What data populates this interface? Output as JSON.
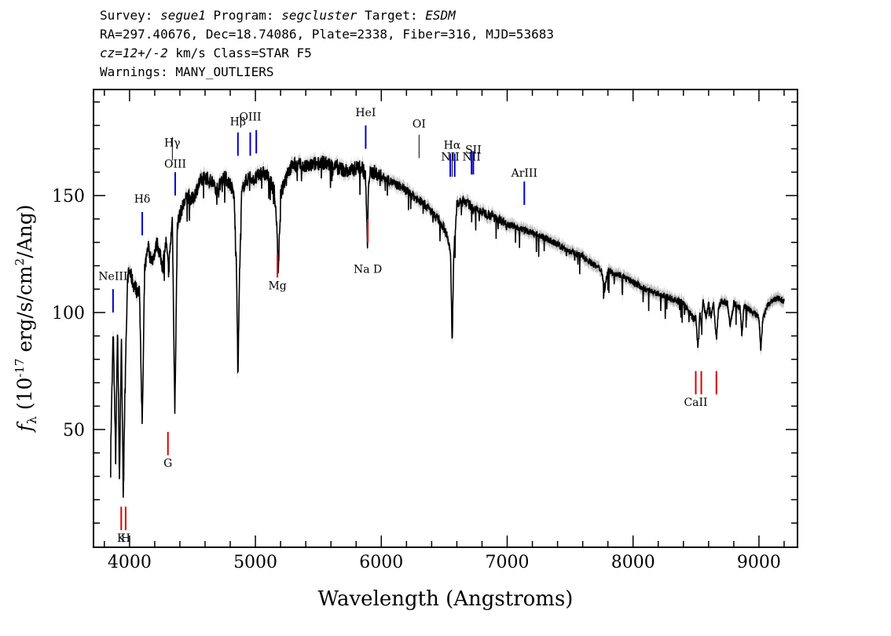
{
  "header": {
    "line1": {
      "survey_label": "Survey: ",
      "survey": "segue1",
      "program_label": " Program: ",
      "program": "segcluster",
      "target_label": " Target: ",
      "target": "ESDM"
    },
    "line2": "RA=297.40676, Dec=18.74086, Plate=2338, Fiber=316, MJD=53683",
    "line3": {
      "cz": "cz=12+/-2",
      "rest": " km/s Class=STAR F5"
    },
    "line4": "Warnings: MANY_OUTLIERS"
  },
  "chart_data": {
    "type": "line",
    "xlabel": "Wavelength (Angstroms)",
    "ylabel_prefix": "f",
    "ylabel_sub": "λ",
    "ylabel_main": " (10",
    "ylabel_exp": "-17",
    "ylabel_units": " erg/s/cm",
    "ylabel_exp2": "2",
    "ylabel_end": "/Ang)",
    "xlim": [
      3720,
      9300
    ],
    "ylim": [
      0,
      195
    ],
    "xticks": [
      4000,
      5000,
      6000,
      7000,
      8000,
      9000
    ],
    "yticks": [
      50,
      100,
      150
    ],
    "colors": {
      "spectrum": "#000000",
      "error": "#bbbbbb",
      "emission": "#0000cc",
      "absorption": "#dd0000",
      "other": "#000000"
    },
    "spectrum": {
      "x": [
        3850,
        3870,
        3890,
        3905,
        3920,
        3935,
        3950,
        3968,
        3985,
        4000,
        4030,
        4060,
        4080,
        4101,
        4120,
        4150,
        4180,
        4220,
        4260,
        4290,
        4310,
        4340,
        4360,
        4380,
        4420,
        4460,
        4500,
        4550,
        4600,
        4650,
        4700,
        4750,
        4800,
        4830,
        4850,
        4861,
        4875,
        4890,
        4910,
        4950,
        5000,
        5050,
        5100,
        5150,
        5167,
        5183,
        5200,
        5250,
        5300,
        5350,
        5400,
        5450,
        5500,
        5550,
        5600,
        5650,
        5700,
        5750,
        5800,
        5850,
        5875,
        5890,
        5900,
        5920,
        5950,
        6000,
        6050,
        6100,
        6150,
        6200,
        6250,
        6300,
        6350,
        6400,
        6450,
        6500,
        6530,
        6550,
        6563,
        6575,
        6600,
        6650,
        6700,
        6750,
        6800,
        6900,
        7000,
        7100,
        7200,
        7300,
        7400,
        7500,
        7600,
        7700,
        7750,
        7773,
        7800,
        7900,
        8000,
        8100,
        8200,
        8300,
        8400,
        8450,
        8480,
        8498,
        8515,
        8530,
        8542,
        8555,
        8580,
        8600,
        8620,
        8640,
        8662,
        8680,
        8700,
        8750,
        8771,
        8800,
        8850,
        8865,
        8880,
        8950,
        9000,
        9015,
        9030,
        9060,
        9100,
        9150,
        9200
      ],
      "y": [
        40,
        92,
        38,
        95,
        26,
        90,
        24,
        80,
        115,
        118,
        112,
        110,
        108,
        50,
        118,
        128,
        122,
        130,
        120,
        130,
        118,
        140,
        57,
        138,
        145,
        150,
        148,
        155,
        158,
        156,
        153,
        158,
        155,
        150,
        120,
        72,
        120,
        150,
        155,
        158,
        157,
        160,
        158,
        152,
        140,
        118,
        150,
        160,
        163,
        163,
        162,
        163,
        164,
        164,
        163,
        162,
        161,
        160,
        162,
        162,
        158,
        128,
        158,
        160,
        160,
        158,
        157,
        155,
        154,
        152,
        150,
        148,
        146,
        143,
        140,
        136,
        132,
        125,
        86,
        125,
        146,
        148,
        146,
        144,
        143,
        141,
        138,
        136,
        134,
        132,
        129,
        126,
        124,
        120,
        118,
        110,
        118,
        116,
        113,
        110,
        108,
        106,
        104,
        100,
        97,
        98,
        85,
        100,
        95,
        105,
        98,
        104,
        98,
        104,
        88,
        102,
        105,
        104,
        94,
        104,
        102,
        90,
        103,
        100,
        98,
        83,
        97,
        102,
        105,
        106,
        105
      ]
    },
    "lines": [
      {
        "label": "NeIII",
        "x": 3869,
        "type": "emission",
        "y0": 100,
        "y1": 110,
        "ly": 114
      },
      {
        "label": "Hδ",
        "x": 4101,
        "type": "emission",
        "y0": 133,
        "y1": 143,
        "ly": 147
      },
      {
        "label": "Hγ",
        "x": 4340,
        "type": "other",
        "y0": 165,
        "y1": 175,
        "ly": 171
      },
      {
        "label": "OIII",
        "x": 4363,
        "type": "emission",
        "y0": 150,
        "y1": 160,
        "ly": 162
      },
      {
        "label": "Hβ",
        "x": 4861,
        "type": "emission",
        "y0": 167,
        "y1": 177,
        "ly": 180
      },
      {
        "label": "OIII",
        "x": 4959,
        "type": "emission",
        "y0": 167,
        "y1": 177,
        "ly": 182
      },
      {
        "label": "",
        "x": 5007,
        "type": "emission",
        "y0": 168,
        "y1": 178,
        "ly": 0
      },
      {
        "label": "HeI",
        "x": 5876,
        "type": "emission",
        "y0": 170,
        "y1": 180,
        "ly": 184
      },
      {
        "label": "OI",
        "x": 6300,
        "type": "other",
        "y0": 166,
        "y1": 176,
        "ly": 179
      },
      {
        "label": "NII",
        "x": 6548,
        "type": "emission",
        "y0": 158,
        "y1": 168,
        "ly": 165
      },
      {
        "label": "Hα",
        "x": 6563,
        "type": "other",
        "y0": 158,
        "y1": 168,
        "ly": 170
      },
      {
        "label": "",
        "x": 6583,
        "type": "emission",
        "y0": 158,
        "y1": 168,
        "ly": 0
      },
      {
        "label": "NII",
        "x": 6717,
        "type": "emission",
        "y0": 159,
        "y1": 169,
        "ly": 165
      },
      {
        "label": "SII",
        "x": 6731,
        "type": "emission",
        "y0": 159,
        "y1": 169,
        "ly": 168
      },
      {
        "label": "ArIII",
        "x": 7136,
        "type": "emission",
        "y0": 146,
        "y1": 156,
        "ly": 158
      },
      {
        "label": "K",
        "x": 3934,
        "type": "absorption",
        "y0": 7,
        "y1": 17,
        "ly": 2
      },
      {
        "label": "H",
        "x": 3969,
        "type": "absorption",
        "y0": 7,
        "y1": 17,
        "ly": 2
      },
      {
        "label": "G",
        "x": 4305,
        "type": "absorption",
        "y0": 39,
        "y1": 49,
        "ly": 34
      },
      {
        "label": "Mg",
        "x": 5175,
        "type": "absorption",
        "y0": 115,
        "y1": 125,
        "ly": 110
      },
      {
        "label": "Na D",
        "x": 5893,
        "type": "absorption",
        "y0": 130,
        "y1": 140,
        "ly": 117
      },
      {
        "label": "CaII",
        "x": 8498,
        "type": "absorption",
        "y0": 65,
        "y1": 75,
        "ly": 60
      },
      {
        "label": "",
        "x": 8542,
        "type": "absorption",
        "y0": 65,
        "y1": 75,
        "ly": 0
      },
      {
        "label": "",
        "x": 8662,
        "type": "absorption",
        "y0": 65,
        "y1": 75,
        "ly": 0
      }
    ]
  }
}
